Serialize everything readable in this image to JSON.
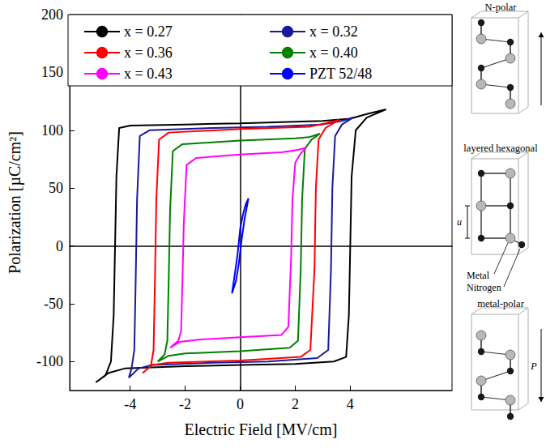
{
  "chart_data": {
    "type": "line",
    "xlabel": "Electric Field [MV/cm]",
    "ylabel": "Polarization [µC/cm²]",
    "xlim": [
      -6.2,
      7.7
    ],
    "xticks": [
      -4,
      -2,
      0,
      2,
      4
    ],
    "ylim": [
      -125,
      200
    ],
    "yticks": [
      -100,
      -50,
      0,
      50,
      100,
      150,
      200
    ],
    "grid": false,
    "legend": "top",
    "marker": "none",
    "line_style": "solid",
    "series": [
      {
        "name": "x = 0.27",
        "color": "#000000",
        "x": [
          -5.25,
          -4.8,
          -4.2,
          -2,
          0,
          2,
          3.4,
          3.85,
          3.95,
          4.0,
          4.05,
          4.2,
          4.6,
          5.0,
          5.3,
          4.6,
          4.0,
          3.0,
          0,
          -2,
          -4.0,
          -4.4,
          -4.5,
          -4.55,
          -4.6,
          -4.7,
          -4.9,
          -5.25
        ],
        "values": [
          -118,
          -110,
          -106,
          -104,
          -103,
          -102,
          -100,
          -96,
          -60,
          0,
          60,
          100,
          111,
          115,
          118,
          114,
          110,
          108,
          106,
          105,
          104,
          102,
          60,
          0,
          -60,
          -100,
          -112,
          -118
        ]
      },
      {
        "name": "x = 0.32",
        "color": "#1a1a9c",
        "x": [
          -4.05,
          -3.7,
          -3.2,
          -1,
          1,
          2.8,
          3.2,
          3.3,
          3.35,
          3.45,
          3.7,
          4.1,
          3.7,
          3,
          1,
          -1,
          -3.3,
          -3.65,
          -3.75,
          -3.8,
          -3.85,
          -3.95,
          -4.05
        ],
        "values": [
          -114,
          -106,
          -103,
          -101,
          -100,
          -97,
          -90,
          -20,
          50,
          95,
          105,
          111,
          108,
          105,
          103,
          102,
          100,
          95,
          40,
          -30,
          -90,
          -106,
          -114
        ]
      },
      {
        "name": "x = 0.36",
        "color": "#ff0000",
        "x": [
          -3.55,
          -3.2,
          -2.6,
          0,
          2.2,
          2.55,
          2.7,
          2.75,
          2.85,
          3.1,
          3.6,
          3.1,
          2.5,
          0,
          -2.6,
          -2.95,
          -3.05,
          -3.1,
          -3.15,
          -3.25,
          -3.55
        ],
        "values": [
          -110,
          -103,
          -101,
          -99,
          -96,
          -90,
          -20,
          50,
          92,
          102,
          109,
          106,
          103,
          101,
          98,
          92,
          40,
          -30,
          -90,
          -104,
          -110
        ]
      },
      {
        "name": "x = 0.40",
        "color": "#008000",
        "x": [
          -3.0,
          -2.6,
          -2,
          0,
          1.8,
          2.1,
          2.2,
          2.25,
          2.35,
          2.6,
          2.9,
          2.5,
          2,
          0,
          -2.1,
          -2.45,
          -2.55,
          -2.6,
          -2.65,
          -2.75,
          -3.0
        ],
        "values": [
          -100,
          -95,
          -93,
          -91,
          -88,
          -82,
          -20,
          40,
          84,
          92,
          97,
          94,
          93,
          91,
          88,
          82,
          30,
          -30,
          -82,
          -94,
          -100
        ]
      },
      {
        "name": "x = 0.43",
        "color": "#ff00ff",
        "x": [
          -2.55,
          -2.2,
          -1.5,
          0,
          1.5,
          1.75,
          1.85,
          1.9,
          2.0,
          2.2,
          2.4,
          2.1,
          1.5,
          0,
          -1.6,
          -1.95,
          -2.05,
          -2.1,
          -2.15,
          -2.25,
          -2.55
        ],
        "values": [
          -88,
          -83,
          -81,
          -79,
          -77,
          -70,
          -10,
          40,
          72,
          80,
          85,
          83,
          81,
          79,
          76,
          70,
          20,
          -30,
          -74,
          -82,
          -88
        ]
      },
      {
        "name": "PZT 52/48",
        "color": "#0000ff",
        "x": [
          -0.3,
          -0.15,
          -0.05,
          0.05,
          0.15,
          0.25,
          0.3,
          0.2,
          0.1,
          0,
          -0.1,
          -0.2,
          -0.3
        ],
        "values": [
          -41,
          -30,
          -15,
          5,
          22,
          35,
          41,
          36,
          27,
          15,
          -8,
          -25,
          -41
        ]
      }
    ]
  },
  "structures": [
    {
      "title": "N-polar"
    },
    {
      "title": "layered hexagonal",
      "labels": {
        "spacing": "u",
        "metal": "Metal",
        "nitrogen": "Nitrogen"
      }
    },
    {
      "title": "metal-polar",
      "arrow": "P"
    }
  ]
}
